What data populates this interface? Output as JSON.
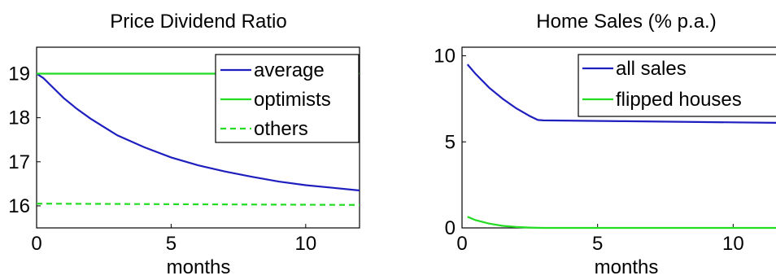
{
  "chart_data": [
    {
      "type": "line",
      "title": "Price Dividend Ratio",
      "xlabel": "months",
      "ylabel": "",
      "xlim": [
        0,
        12
      ],
      "ylim": [
        15.5,
        19.6
      ],
      "xticks": [
        0,
        5,
        10
      ],
      "yticks": [
        16,
        17,
        18,
        19
      ],
      "legend_position": "top-right",
      "series": [
        {
          "name": "average",
          "color": "#1f1fbf",
          "style": "solid",
          "x": [
            0,
            0.25,
            0.5,
            1,
            1.5,
            2,
            3,
            4,
            5,
            6,
            7,
            8,
            9,
            10,
            11,
            12
          ],
          "y": [
            19.0,
            18.9,
            18.75,
            18.45,
            18.2,
            17.98,
            17.6,
            17.33,
            17.1,
            16.92,
            16.78,
            16.66,
            16.55,
            16.47,
            16.41,
            16.35
          ]
        },
        {
          "name": "optimists",
          "color": "#22dd22",
          "style": "solid",
          "x": [
            0,
            12
          ],
          "y": [
            19.0,
            19.0
          ]
        },
        {
          "name": "others",
          "color": "#22dd22",
          "style": "dashed",
          "x": [
            0,
            12
          ],
          "y": [
            16.05,
            16.02
          ]
        }
      ]
    },
    {
      "type": "line",
      "title": "Home Sales (% p.a.)",
      "xlabel": "months",
      "ylabel": "",
      "xlim": [
        0,
        12
      ],
      "ylim": [
        0,
        10.5
      ],
      "xticks": [
        0,
        5,
        10
      ],
      "yticks": [
        0,
        5,
        10
      ],
      "legend_position": "top-right",
      "series": [
        {
          "name": "all sales",
          "color": "#1f1fbf",
          "style": "solid",
          "x": [
            0.2,
            0.5,
            1,
            1.5,
            2,
            2.5,
            2.8,
            3,
            6,
            9,
            12
          ],
          "y": [
            9.5,
            8.95,
            8.15,
            7.5,
            6.95,
            6.5,
            6.27,
            6.25,
            6.2,
            6.15,
            6.1
          ]
        },
        {
          "name": "flipped houses",
          "color": "#22dd22",
          "style": "solid",
          "x": [
            0.2,
            0.5,
            1,
            1.5,
            2,
            2.5,
            3,
            6,
            12
          ],
          "y": [
            0.65,
            0.45,
            0.25,
            0.12,
            0.05,
            0.02,
            0.0,
            0.0,
            0.0
          ]
        }
      ]
    }
  ]
}
